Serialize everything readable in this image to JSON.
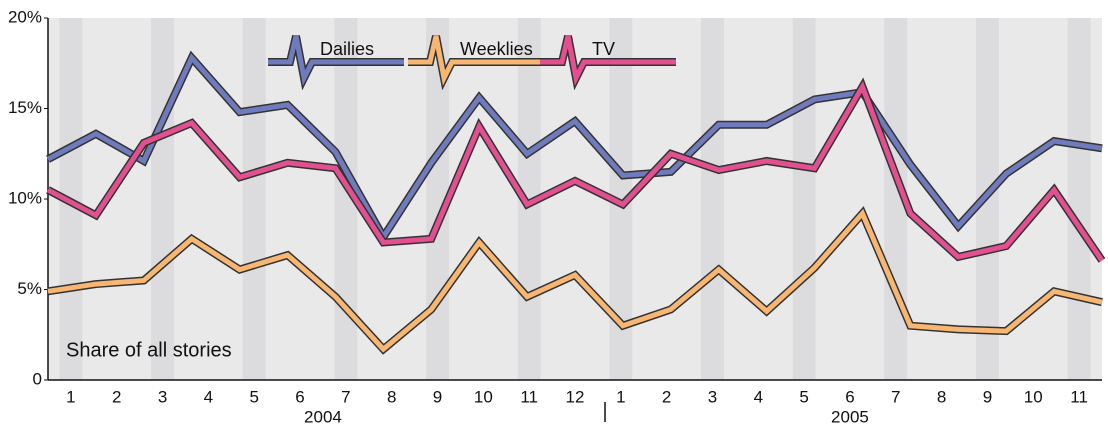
{
  "chart_data": {
    "type": "line",
    "annotation": "Share of all stories",
    "categories": [
      "1",
      "2",
      "3",
      "4",
      "5",
      "6",
      "7",
      "8",
      "9",
      "10",
      "11",
      "12",
      "1",
      "2",
      "3",
      "4",
      "5",
      "6",
      "7",
      "8",
      "9",
      "10",
      "11"
    ],
    "years": [
      "2004",
      "2005"
    ],
    "series": [
      {
        "name": "Dailies",
        "color": "#6f7bbd",
        "values": [
          12.2,
          13.6,
          12.1,
          17.8,
          14.8,
          15.2,
          12.6,
          7.9,
          12.0,
          15.6,
          12.5,
          14.3,
          11.3,
          11.5,
          14.1,
          14.1,
          15.5,
          15.9,
          11.9,
          8.5,
          11.4,
          13.2,
          12.8
        ]
      },
      {
        "name": "Weeklies",
        "color": "#f7b672",
        "values": [
          4.9,
          5.3,
          5.5,
          7.8,
          6.1,
          6.9,
          4.6,
          1.7,
          3.9,
          7.6,
          4.6,
          5.8,
          3.0,
          3.9,
          6.1,
          3.8,
          6.2,
          9.2,
          3.0,
          2.8,
          2.7,
          4.9,
          4.3
        ]
      },
      {
        "name": "TV",
        "color": "#e2508f",
        "values": [
          10.5,
          9.1,
          13.1,
          14.2,
          11.2,
          12.0,
          11.7,
          7.6,
          7.8,
          14.0,
          9.7,
          11.0,
          9.7,
          12.5,
          11.6,
          12.1,
          11.7,
          16.2,
          9.2,
          6.8,
          7.4,
          10.5,
          6.6
        ]
      }
    ],
    "ylim": [
      0,
      20
    ],
    "yticks": [
      0,
      {
        "value": 5,
        "label": "5%"
      },
      {
        "value": 10,
        "label": "10%"
      },
      {
        "value": 15,
        "label": "15%"
      },
      {
        "value": 20,
        "label": "20%"
      }
    ]
  }
}
